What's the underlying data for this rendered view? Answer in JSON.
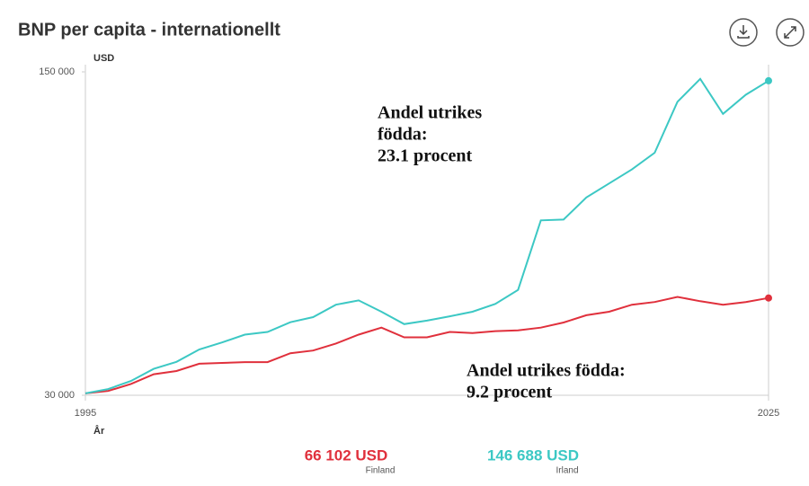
{
  "chart_data": {
    "type": "line",
    "title": "BNP per capita - internationellt",
    "ylabel": "USD",
    "xlabel": "År",
    "x": [
      1995,
      1996,
      1997,
      1998,
      1999,
      2000,
      2001,
      2002,
      2003,
      2004,
      2005,
      2006,
      2007,
      2008,
      2009,
      2010,
      2011,
      2012,
      2013,
      2014,
      2015,
      2016,
      2017,
      2018,
      2019,
      2020,
      2021,
      2022,
      2023,
      2024,
      2025
    ],
    "xlim": [
      1995,
      2025
    ],
    "xticks": [
      1995,
      2025
    ],
    "ylim": [
      30000,
      150000
    ],
    "yticks": [
      {
        "value": 30000,
        "label": "30 000"
      },
      {
        "value": 150000,
        "label": "150 000"
      }
    ],
    "series": [
      {
        "name": "Finland",
        "color": "#e0303c",
        "values": [
          30700,
          31600,
          34200,
          37800,
          39000,
          41700,
          42000,
          42300,
          42300,
          45600,
          46600,
          49200,
          52500,
          55100,
          51500,
          51500,
          53500,
          53100,
          53800,
          54100,
          55100,
          57000,
          59700,
          61000,
          63600,
          64600,
          66500,
          64900,
          63600,
          64600,
          66102
        ],
        "value_labels": [
          null,
          null,
          null,
          null,
          null,
          null,
          null,
          null,
          null,
          null,
          null,
          null,
          null,
          null,
          null,
          null,
          null,
          null,
          null,
          null,
          null,
          null,
          null,
          null,
          null,
          null,
          null,
          null,
          null,
          null,
          "66 102 USD"
        ]
      },
      {
        "name": "Irland",
        "color": "#3cc8c4",
        "values": [
          30700,
          32300,
          35300,
          39800,
          42400,
          47000,
          49600,
          52500,
          53500,
          57100,
          59000,
          63600,
          65200,
          61000,
          56400,
          57700,
          59300,
          61000,
          63900,
          69100,
          94900,
          95200,
          103400,
          108600,
          113800,
          120000,
          138900,
          147400,
          134400,
          141500,
          146688
        ],
        "value_labels": [
          null,
          null,
          null,
          null,
          null,
          null,
          null,
          null,
          null,
          null,
          null,
          null,
          null,
          null,
          null,
          null,
          null,
          null,
          null,
          null,
          null,
          null,
          null,
          null,
          null,
          null,
          null,
          null,
          null,
          null,
          "146 688 USD"
        ]
      }
    ],
    "annotations": [
      {
        "lines": [
          "Andel utrikes",
          "födda:",
          "23.1 procent"
        ]
      },
      {
        "lines": [
          "Andel utrikes födda:",
          "9.2 procent"
        ]
      }
    ]
  }
}
